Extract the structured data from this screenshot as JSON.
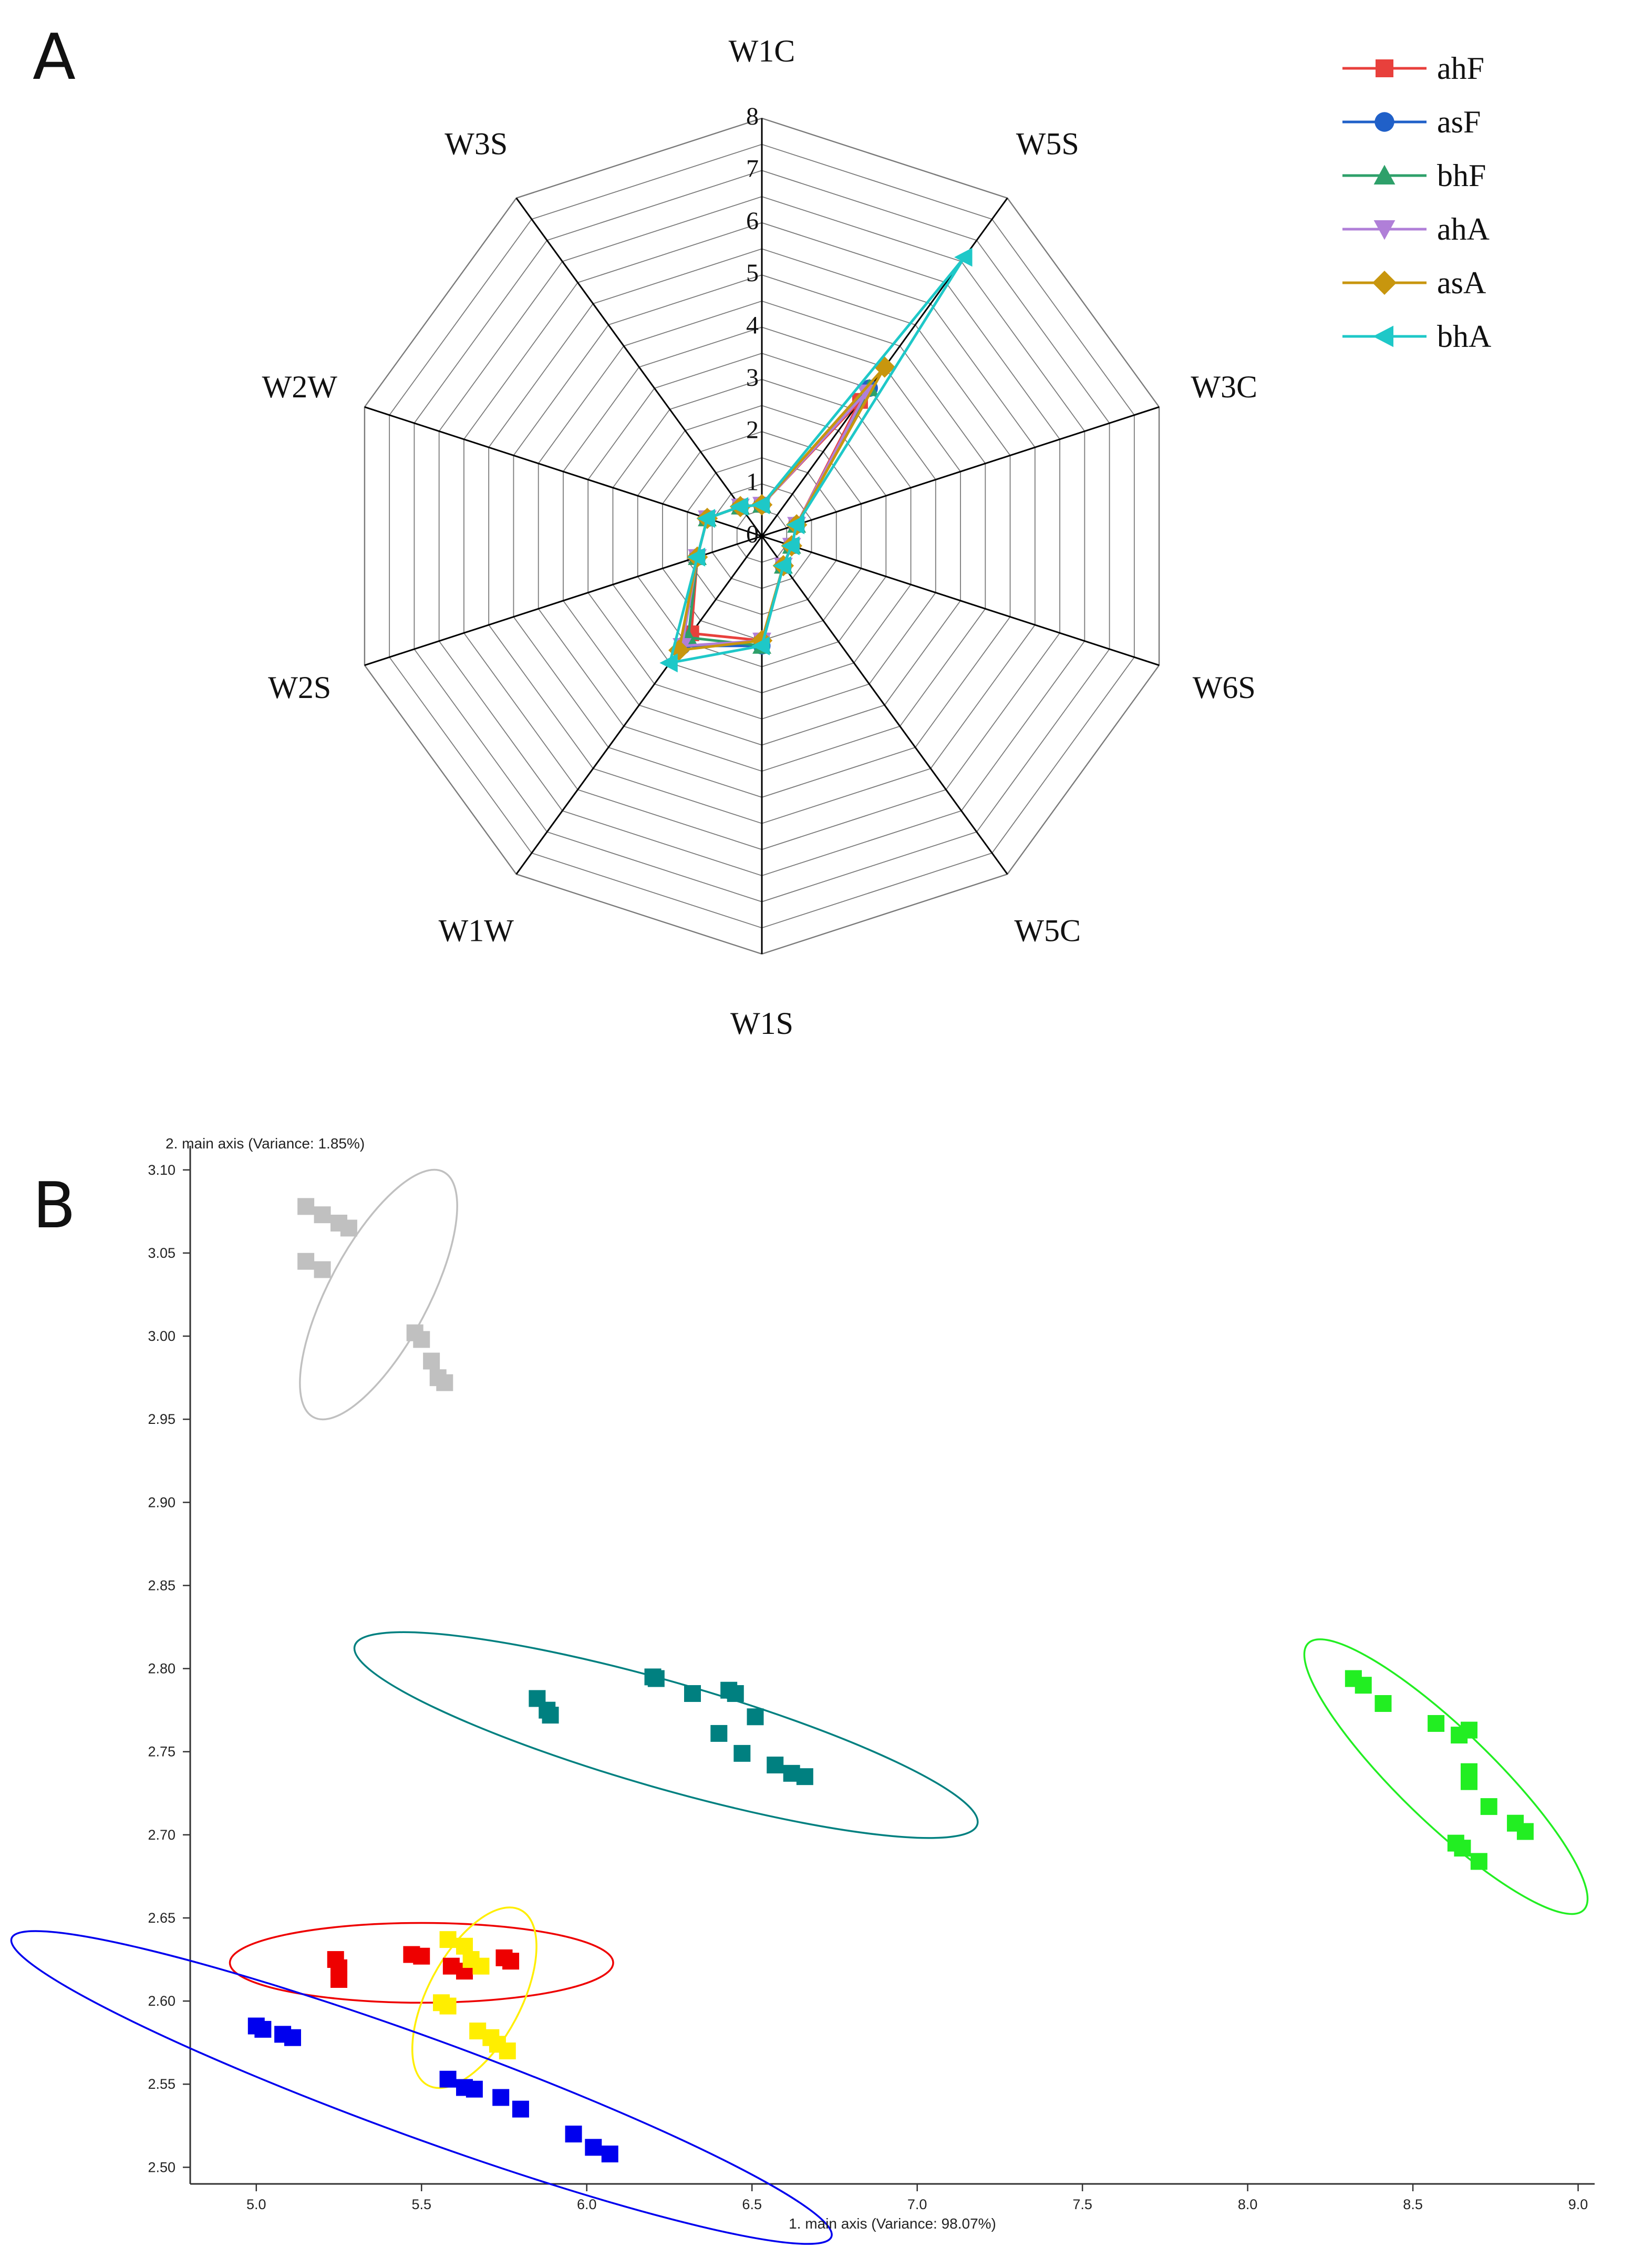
{
  "panels": {
    "a_letter": "A",
    "b_letter": "B"
  },
  "chart_data": [
    {
      "type": "radar",
      "axes": [
        "W1C",
        "W5S",
        "W3C",
        "W6S",
        "W5C",
        "W1S",
        "W1W",
        "W2S",
        "W2W",
        "W3S"
      ],
      "rlim": [
        0,
        8
      ],
      "r_ticks": [
        "0",
        "1",
        "2",
        "3",
        "4",
        "5",
        "6",
        "7",
        "8"
      ],
      "series": [
        {
          "name": "ahF",
          "color": "#e8403c",
          "marker": "square",
          "values": [
            0.6,
            3.2,
            0.7,
            0.6,
            0.7,
            2.0,
            2.3,
            1.3,
            1.1,
            0.7
          ]
        },
        {
          "name": "asF",
          "color": "#2060c8",
          "marker": "circle",
          "values": [
            0.6,
            3.5,
            0.7,
            0.6,
            0.7,
            2.1,
            2.6,
            1.3,
            1.1,
            0.7
          ]
        },
        {
          "name": "bhF",
          "color": "#2ea06a",
          "marker": "triangle-up",
          "values": [
            0.6,
            3.5,
            0.7,
            0.6,
            0.7,
            2.1,
            2.4,
            1.3,
            1.1,
            0.7
          ]
        },
        {
          "name": "ahA",
          "color": "#b07fd8",
          "marker": "triangle-down",
          "values": [
            0.6,
            3.4,
            0.7,
            0.6,
            0.7,
            2.0,
            2.6,
            1.3,
            1.1,
            0.7
          ]
        },
        {
          "name": "asA",
          "color": "#c8960e",
          "marker": "diamond",
          "values": [
            0.6,
            4.0,
            0.7,
            0.6,
            0.7,
            2.0,
            2.7,
            1.3,
            1.1,
            0.7
          ]
        },
        {
          "name": "bhA",
          "color": "#1ec8c8",
          "marker": "triangle-left",
          "values": [
            0.6,
            6.6,
            0.7,
            0.6,
            0.7,
            2.1,
            3.0,
            1.3,
            1.1,
            0.7
          ]
        }
      ]
    },
    {
      "type": "scatter",
      "xlabel": "1. main axis (Variance: 98.07%)",
      "ylabel": "2. main axis (Variance: 1.85%)",
      "xlim": [
        4.8,
        9.05
      ],
      "ylim": [
        2.49,
        3.105
      ],
      "xticks": [
        "5.0",
        "5.5",
        "6.0",
        "6.5",
        "7.0",
        "7.5",
        "8.0",
        "8.5",
        "9.0"
      ],
      "yticks": [
        "2.50",
        "2.55",
        "2.60",
        "2.65",
        "2.70",
        "2.75",
        "2.80",
        "2.85",
        "2.90",
        "2.95",
        "3.00",
        "3.05",
        "3.10"
      ],
      "groups": [
        {
          "color": "#c0c0c0",
          "ellipse": {
            "cx": 5.37,
            "cy": 3.025,
            "rx": 0.42,
            "ry": 0.03,
            "angle_deg": -62
          },
          "points": [
            [
              5.15,
              3.078
            ],
            [
              5.2,
              3.073
            ],
            [
              5.25,
              3.068
            ],
            [
              5.28,
              3.065
            ],
            [
              5.15,
              3.045
            ],
            [
              5.2,
              3.04
            ],
            [
              5.48,
              3.002
            ],
            [
              5.5,
              2.998
            ],
            [
              5.53,
              2.985
            ],
            [
              5.55,
              2.975
            ],
            [
              5.57,
              2.972
            ]
          ]
        },
        {
          "color": "#008080",
          "ellipse": {
            "cx": 6.24,
            "cy": 2.76,
            "rx": 0.98,
            "ry": 0.032,
            "angle_deg": 16
          },
          "points": [
            [
              5.85,
              2.782
            ],
            [
              5.88,
              2.775
            ],
            [
              5.89,
              2.772
            ],
            [
              6.2,
              2.795
            ],
            [
              6.21,
              2.794
            ],
            [
              6.32,
              2.785
            ],
            [
              6.43,
              2.787
            ],
            [
              6.45,
              2.785
            ],
            [
              6.4,
              2.761
            ],
            [
              6.51,
              2.771
            ],
            [
              6.47,
              2.749
            ],
            [
              6.57,
              2.742
            ],
            [
              6.62,
              2.737
            ],
            [
              6.66,
              2.735
            ]
          ]
        },
        {
          "color": "#22ee22",
          "ellipse": {
            "cx": 8.6,
            "cy": 2.735,
            "rx": 0.58,
            "ry": 0.028,
            "angle_deg": 44
          },
          "points": [
            [
              8.32,
              2.794
            ],
            [
              8.35,
              2.79
            ],
            [
              8.41,
              2.779
            ],
            [
              8.57,
              2.767
            ],
            [
              8.64,
              2.76
            ],
            [
              8.67,
              2.763
            ],
            [
              8.67,
              2.738
            ],
            [
              8.67,
              2.732
            ],
            [
              8.73,
              2.717
            ],
            [
              8.81,
              2.707
            ],
            [
              8.84,
              2.702
            ],
            [
              8.63,
              2.695
            ],
            [
              8.65,
              2.692
            ],
            [
              8.7,
              2.684
            ]
          ]
        },
        {
          "color": "#ee0000",
          "ellipse": {
            "cx": 5.5,
            "cy": 2.623,
            "rx": 0.58,
            "ry": 0.024,
            "angle_deg": 0
          },
          "points": [
            [
              5.24,
              2.625
            ],
            [
              5.25,
              2.62
            ],
            [
              5.25,
              2.613
            ],
            [
              5.47,
              2.628
            ],
            [
              5.5,
              2.627
            ],
            [
              5.59,
              2.621
            ],
            [
              5.63,
              2.618
            ],
            [
              5.75,
              2.626
            ],
            [
              5.77,
              2.624
            ]
          ]
        },
        {
          "color": "#ffee00",
          "ellipse": {
            "cx": 5.66,
            "cy": 2.602,
            "rx": 0.3,
            "ry": 0.028,
            "angle_deg": -62
          },
          "points": [
            [
              5.58,
              2.637
            ],
            [
              5.63,
              2.633
            ],
            [
              5.65,
              2.625
            ],
            [
              5.68,
              2.621
            ],
            [
              5.56,
              2.599
            ],
            [
              5.58,
              2.597
            ],
            [
              5.67,
              2.582
            ],
            [
              5.71,
              2.578
            ],
            [
              5.73,
              2.574
            ],
            [
              5.76,
              2.57
            ]
          ]
        },
        {
          "color": "#0000ee",
          "ellipse": {
            "cx": 5.5,
            "cy": 2.548,
            "rx": 1.32,
            "ry": 0.03,
            "angle_deg": 20
          },
          "points": [
            [
              5.0,
              2.585
            ],
            [
              5.02,
              2.583
            ],
            [
              5.08,
              2.58
            ],
            [
              5.11,
              2.578
            ],
            [
              5.58,
              2.553
            ],
            [
              5.63,
              2.548
            ],
            [
              5.66,
              2.547
            ],
            [
              5.74,
              2.542
            ],
            [
              5.8,
              2.535
            ],
            [
              5.96,
              2.52
            ],
            [
              6.02,
              2.512
            ],
            [
              6.07,
              2.508
            ]
          ]
        }
      ]
    }
  ]
}
